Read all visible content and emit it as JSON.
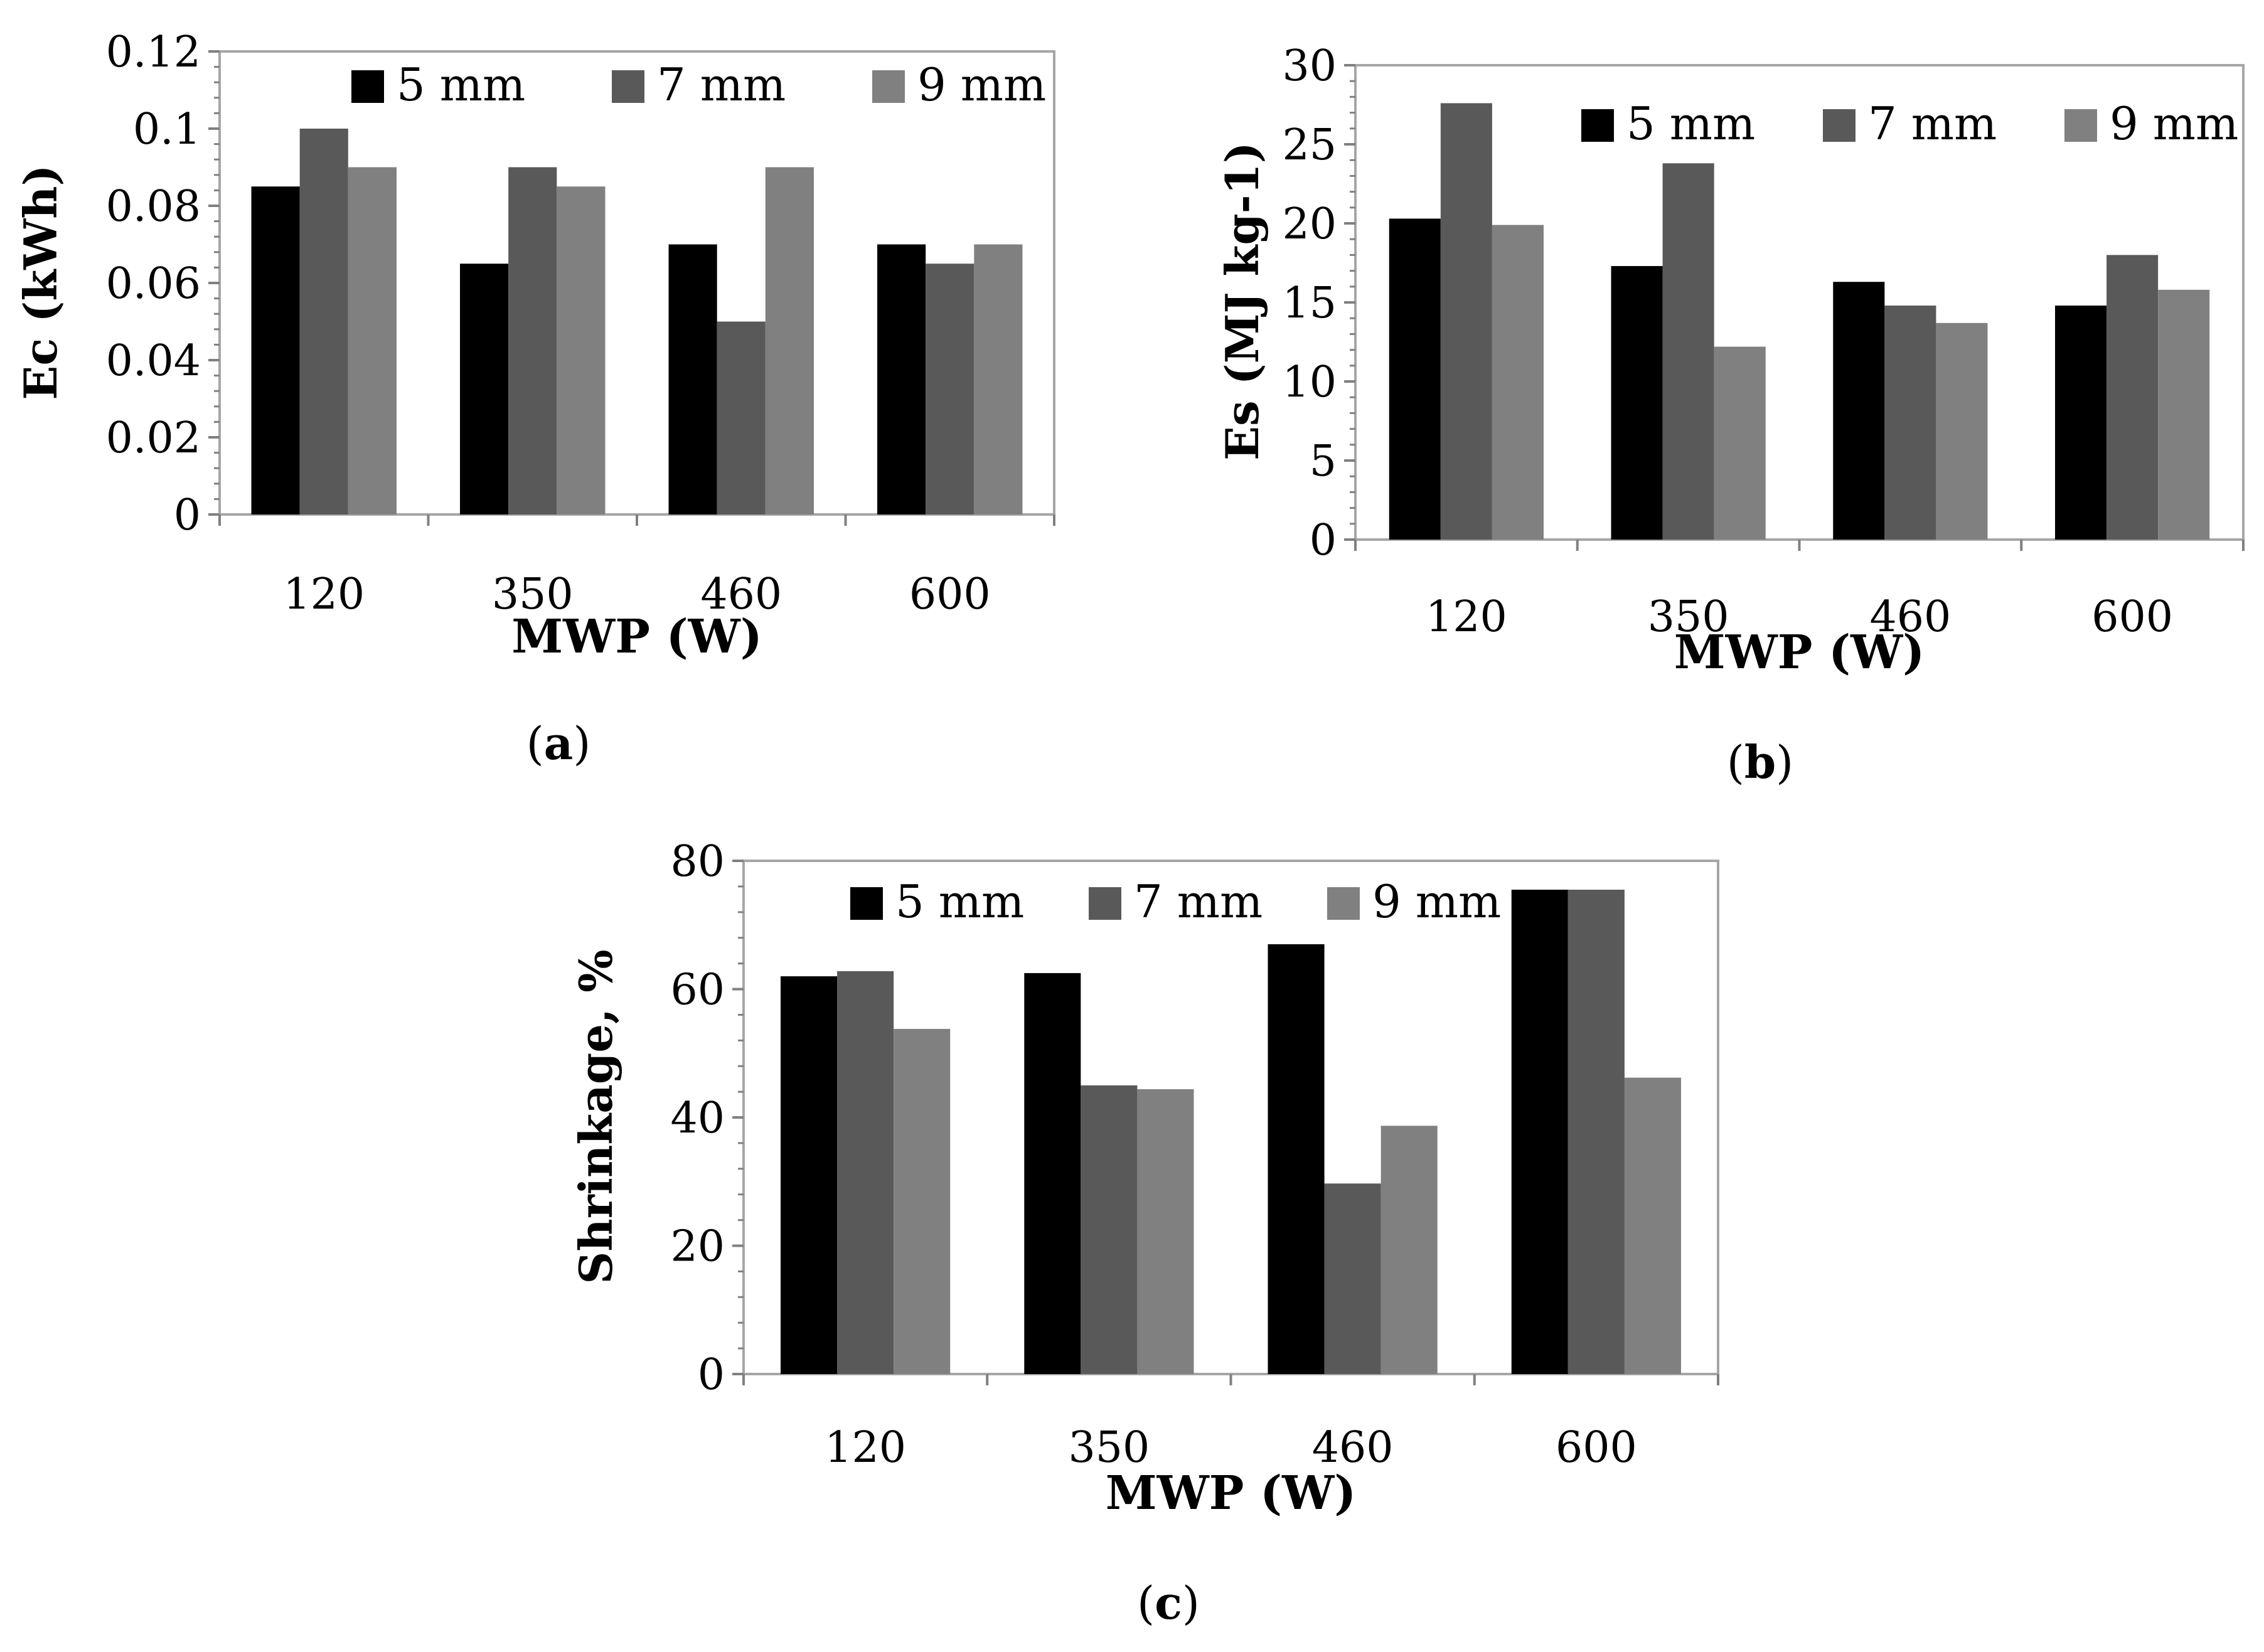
{
  "chart_data": [
    {
      "type": "bar",
      "panel": "a",
      "caption": "(a)",
      "categories": [
        "120",
        "350",
        "460",
        "600"
      ],
      "series": [
        {
          "name": "5 mm",
          "color": "#000000",
          "values": [
            0.085,
            0.065,
            0.07,
            0.07
          ]
        },
        {
          "name": "7 mm",
          "color": "#595959",
          "values": [
            0.1,
            0.09,
            0.05,
            0.065
          ]
        },
        {
          "name": "9 mm",
          "color": "#808080",
          "values": [
            0.09,
            0.085,
            0.09,
            0.07
          ]
        }
      ],
      "xlabel": "MWP (W)",
      "ylabel": "Ec (kWh)",
      "ylim": [
        0,
        0.12
      ],
      "yticks": [
        "0",
        "0.02",
        "0.04",
        "0.06",
        "0.08",
        "0.1",
        "0.12"
      ],
      "grid": false,
      "legend": "top"
    },
    {
      "type": "bar",
      "panel": "b",
      "caption": "(b)",
      "categories": [
        "120",
        "350",
        "460",
        "600"
      ],
      "series": [
        {
          "name": "5 mm",
          "color": "#000000",
          "values": [
            20.3,
            17.3,
            16.3,
            14.8
          ]
        },
        {
          "name": "7 mm",
          "color": "#595959",
          "values": [
            27.6,
            23.8,
            14.8,
            18.0
          ]
        },
        {
          "name": "9 mm",
          "color": "#808080",
          "values": [
            19.9,
            12.2,
            13.7,
            15.8
          ]
        }
      ],
      "xlabel": "MWP (W)",
      "ylabel": "Es (MJ kg-1)",
      "ylim": [
        0,
        30
      ],
      "yticks": [
        "0",
        "5",
        "10",
        "15",
        "20",
        "25",
        "30"
      ],
      "grid": false,
      "legend": "top-right"
    },
    {
      "type": "bar",
      "panel": "c",
      "caption": "(c)",
      "categories": [
        "120",
        "350",
        "460",
        "600"
      ],
      "series": [
        {
          "name": "5 mm",
          "color": "#000000",
          "values": [
            62,
            62.5,
            67,
            75.5
          ]
        },
        {
          "name": "7 mm",
          "color": "#595959",
          "values": [
            62.8,
            45,
            29.7,
            75.5
          ]
        },
        {
          "name": "9 mm",
          "color": "#808080",
          "values": [
            53.8,
            44.4,
            38.7,
            46.2
          ]
        }
      ],
      "xlabel": "MWP (W)",
      "ylabel": "Shrinkage, %",
      "ylim": [
        0,
        80
      ],
      "yticks": [
        "0",
        "20",
        "40",
        "60",
        "80"
      ],
      "grid": false,
      "legend": "top"
    }
  ]
}
